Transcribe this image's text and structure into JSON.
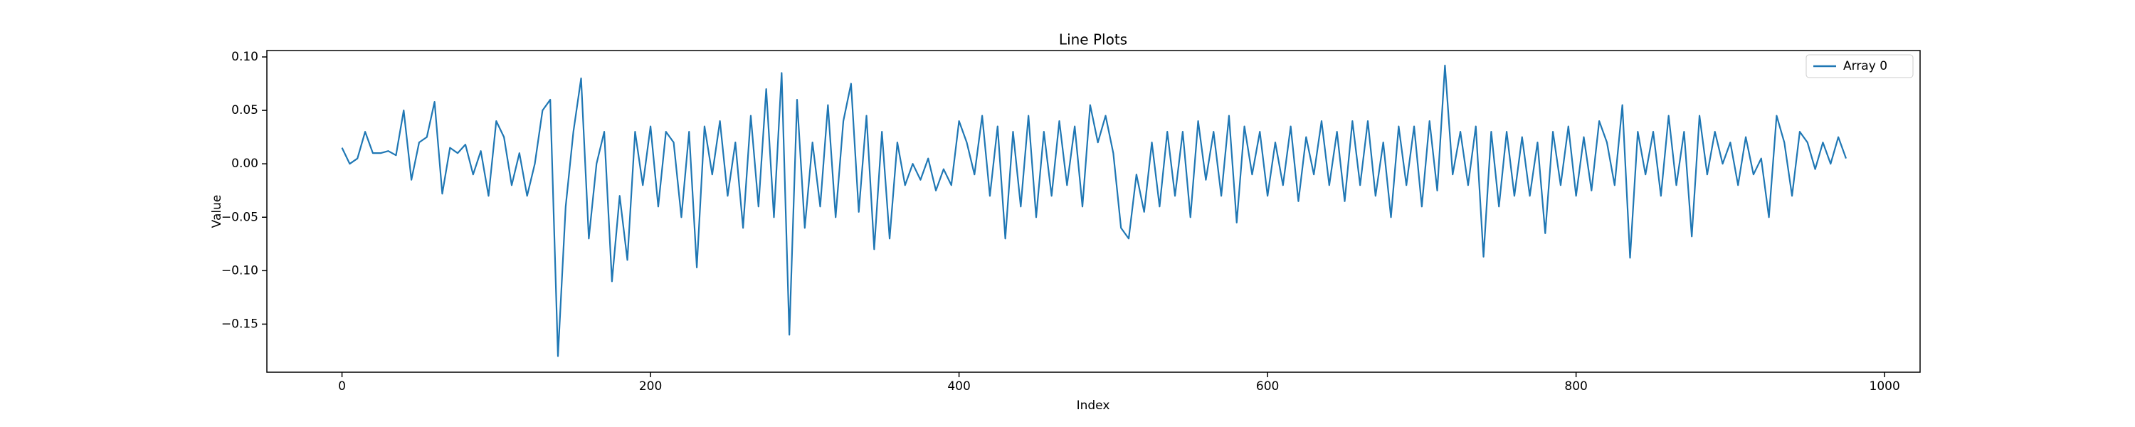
{
  "chart_data": {
    "type": "line",
    "title": "Line Plots",
    "xlabel": "Index",
    "ylabel": "Value",
    "x": [
      0,
      5,
      10,
      15,
      20,
      25,
      30,
      35,
      40,
      45,
      50,
      55,
      60,
      65,
      70,
      75,
      80,
      85,
      90,
      95,
      100,
      105,
      110,
      115,
      120,
      125,
      130,
      135,
      140,
      145,
      150,
      155,
      160,
      165,
      170,
      175,
      180,
      185,
      190,
      195,
      200,
      205,
      210,
      215,
      220,
      225,
      230,
      235,
      240,
      245,
      250,
      255,
      260,
      265,
      270,
      275,
      280,
      285,
      290,
      295,
      300,
      305,
      310,
      315,
      320,
      325,
      330,
      335,
      340,
      345,
      350,
      355,
      360,
      365,
      370,
      375,
      380,
      385,
      390,
      395,
      400,
      405,
      410,
      415,
      420,
      425,
      430,
      435,
      440,
      445,
      450,
      455,
      460,
      465,
      470,
      475,
      480,
      485,
      490,
      495,
      500,
      505,
      510,
      515,
      520,
      525,
      530,
      535,
      540,
      545,
      550,
      555,
      560,
      565,
      570,
      575,
      580,
      585,
      590,
      595,
      600,
      605,
      610,
      615,
      620,
      625,
      630,
      635,
      640,
      645,
      650,
      655,
      660,
      665,
      670,
      675,
      680,
      685,
      690,
      695,
      700,
      705,
      710,
      715,
      720,
      725,
      730,
      735,
      740,
      745,
      750,
      755,
      760,
      765,
      770,
      775,
      780,
      785,
      790,
      795,
      800,
      805,
      810,
      815,
      820,
      825,
      830,
      835,
      840,
      845,
      850,
      855,
      860,
      865,
      870,
      875,
      880,
      885,
      890,
      895,
      900,
      905,
      910,
      915,
      920,
      925,
      930,
      935,
      940,
      945,
      950,
      955,
      960,
      965,
      970,
      975
    ],
    "series": [
      {
        "name": "Array 0",
        "color": "#1f77b4",
        "values": [
          0.015,
          0.0,
          0.005,
          0.03,
          0.01,
          0.01,
          0.012,
          0.008,
          0.05,
          -0.015,
          0.02,
          0.025,
          0.058,
          -0.028,
          0.015,
          0.01,
          0.018,
          -0.01,
          0.012,
          -0.03,
          0.04,
          0.025,
          -0.02,
          0.01,
          -0.03,
          0.0,
          0.05,
          0.06,
          -0.18,
          -0.04,
          0.03,
          0.08,
          -0.07,
          0.0,
          0.03,
          -0.11,
          -0.03,
          -0.09,
          0.03,
          -0.02,
          0.035,
          -0.04,
          0.03,
          0.02,
          -0.05,
          0.03,
          -0.097,
          0.035,
          -0.01,
          0.04,
          -0.03,
          0.02,
          -0.06,
          0.045,
          -0.04,
          0.07,
          -0.05,
          0.085,
          -0.16,
          0.06,
          -0.06,
          0.02,
          -0.04,
          0.055,
          -0.05,
          0.04,
          0.075,
          -0.045,
          0.045,
          -0.08,
          0.03,
          -0.07,
          0.02,
          -0.02,
          0.0,
          -0.015,
          0.005,
          -0.025,
          -0.005,
          -0.02,
          0.04,
          0.02,
          -0.01,
          0.045,
          -0.03,
          0.035,
          -0.07,
          0.03,
          -0.04,
          0.045,
          -0.05,
          0.03,
          -0.03,
          0.04,
          -0.02,
          0.035,
          -0.04,
          0.055,
          0.02,
          0.045,
          0.01,
          -0.06,
          -0.07,
          -0.01,
          -0.045,
          0.02,
          -0.04,
          0.03,
          -0.03,
          0.03,
          -0.05,
          0.04,
          -0.015,
          0.03,
          -0.03,
          0.045,
          -0.055,
          0.035,
          -0.01,
          0.03,
          -0.03,
          0.02,
          -0.02,
          0.035,
          -0.035,
          0.025,
          -0.01,
          0.04,
          -0.02,
          0.03,
          -0.035,
          0.04,
          -0.02,
          0.04,
          -0.03,
          0.02,
          -0.05,
          0.035,
          -0.02,
          0.035,
          -0.04,
          0.04,
          -0.025,
          0.092,
          -0.01,
          0.03,
          -0.02,
          0.035,
          -0.087,
          0.03,
          -0.04,
          0.03,
          -0.03,
          0.025,
          -0.03,
          0.02,
          -0.065,
          0.03,
          -0.02,
          0.035,
          -0.03,
          0.025,
          -0.025,
          0.04,
          0.02,
          -0.02,
          0.055,
          -0.088,
          0.03,
          -0.01,
          0.03,
          -0.03,
          0.045,
          -0.02,
          0.03,
          -0.068,
          0.045,
          -0.01,
          0.03,
          0.0,
          0.02,
          -0.02,
          0.025,
          -0.01,
          0.005,
          -0.05,
          0.045,
          0.02,
          -0.03,
          0.03,
          0.02,
          -0.005,
          0.02,
          0.0,
          0.025,
          0.005
        ]
      }
    ],
    "xlim": [
      -48.7,
      1023
    ],
    "ylim": [
      -0.195,
      0.106
    ],
    "xticks": [
      0,
      200,
      400,
      600,
      800,
      1000
    ],
    "yticks": [
      {
        "value": -0.15,
        "label": "−0.15"
      },
      {
        "value": -0.1,
        "label": "−0.10"
      },
      {
        "value": -0.05,
        "label": "−0.05"
      },
      {
        "value": 0,
        "label": "0.00"
      },
      {
        "value": 0.05,
        "label": "0.05"
      },
      {
        "value": 0.1,
        "label": "0.10"
      }
    ],
    "legend": "upper right"
  }
}
